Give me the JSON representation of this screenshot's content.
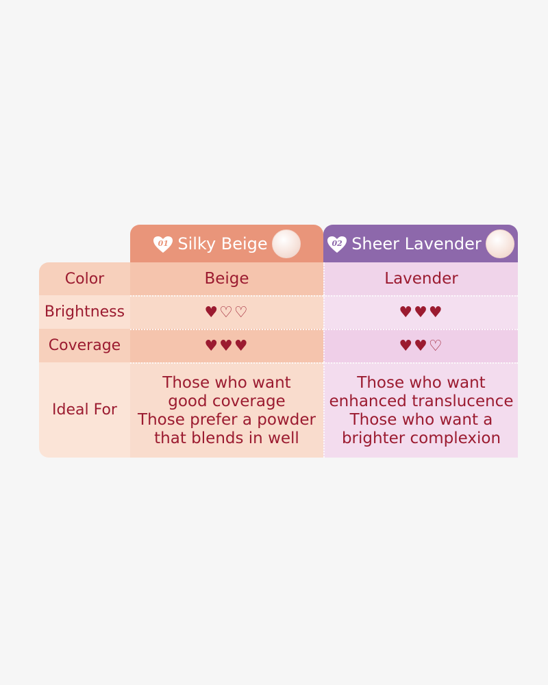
{
  "columns": [
    {
      "number": "01",
      "name": "Silky Beige",
      "header_color": "#e9957a",
      "icon": "powder-jar-image"
    },
    {
      "number": "02",
      "name": "Sheer Lavender",
      "header_color": "#8d68ab",
      "icon": "powder-jar-image"
    }
  ],
  "rows": {
    "color": {
      "label": "Color",
      "values": [
        "Beige",
        "Lavender"
      ]
    },
    "brightness": {
      "label": "Brightness",
      "ratings": [
        1,
        3
      ],
      "max": 3
    },
    "coverage": {
      "label": "Coverage",
      "ratings": [
        3,
        2
      ],
      "max": 3
    },
    "ideal": {
      "label": "Ideal For",
      "values": [
        [
          "Those who want",
          "good coverage",
          "Those prefer a powder",
          "that blends in well"
        ],
        [
          "Those who want",
          "enhanced translucence",
          "Those who want a",
          "brighter complexion"
        ]
      ]
    }
  },
  "colors": {
    "text": "#9b1b30",
    "heart": "#9b1b30"
  }
}
